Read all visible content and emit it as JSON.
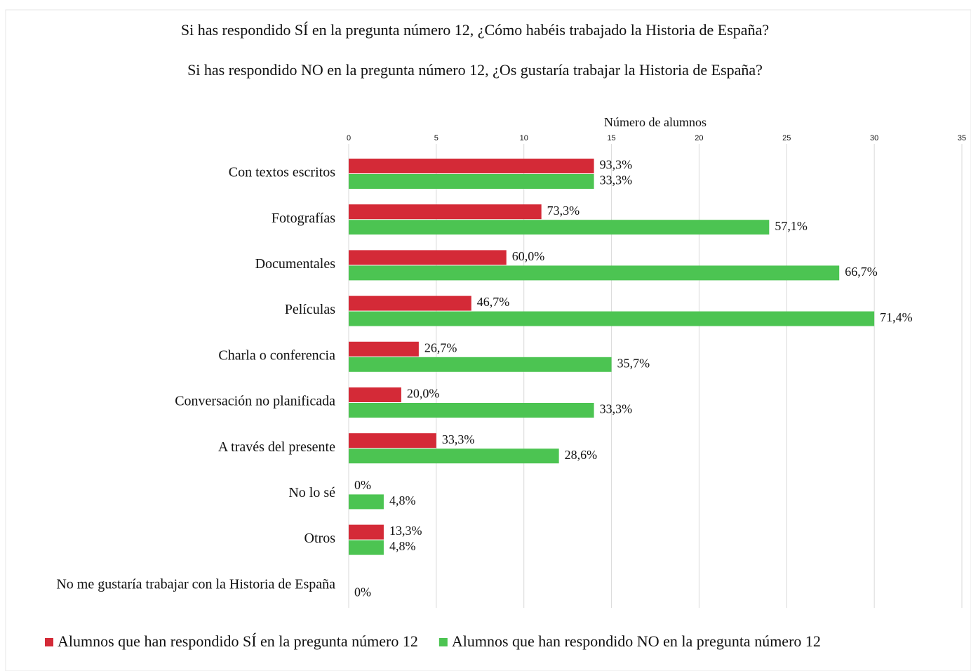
{
  "chart_data": {
    "type": "bar",
    "orientation": "horizontal",
    "title": "Si has respondido SÍ en la pregunta número 12, ¿Cómo habéis trabajado la Historia de España?",
    "subtitle": "Si has respondido NO en la pregunta número 12, ¿Os gustaría trabajar la Historia de España?",
    "x_label": "Número de alumnos",
    "categories": [
      "Con textos escritos",
      "Fotografías",
      "Documentales",
      "Películas",
      "Charla o conferencia",
      "Conversación no planificada",
      "A través del presente",
      "No lo sé",
      "Otros",
      "No me gustaría trabajar con la Historia de España"
    ],
    "series": [
      {
        "name": "Alumnos que han respondido SÍ en la pregunta número 12",
        "color": "#d42a37",
        "values": [
          14,
          11,
          9,
          7,
          4,
          3,
          5,
          0,
          2,
          null
        ],
        "value_labels": [
          "93,3%",
          "73,3%",
          "60,0%",
          "46,7%",
          "26,7%",
          "20,0%",
          "33,3%",
          "0%",
          "13,3%",
          null
        ]
      },
      {
        "name": "Alumnos que han respondido NO en la pregunta número 12",
        "color": "#4cc452",
        "values": [
          14,
          24,
          28,
          30,
          15,
          14,
          12,
          2,
          2,
          0
        ],
        "value_labels": [
          "33,3%",
          "57,1%",
          "66,7%",
          "71,4%",
          "35,7%",
          "33,3%",
          "28,6%",
          "4,8%",
          "4,8%",
          "0%"
        ]
      }
    ],
    "xlim": [
      0,
      35
    ],
    "xticks": [
      0,
      5,
      10,
      15,
      20,
      25,
      30,
      35
    ],
    "grid": true,
    "legend": "bottom"
  }
}
